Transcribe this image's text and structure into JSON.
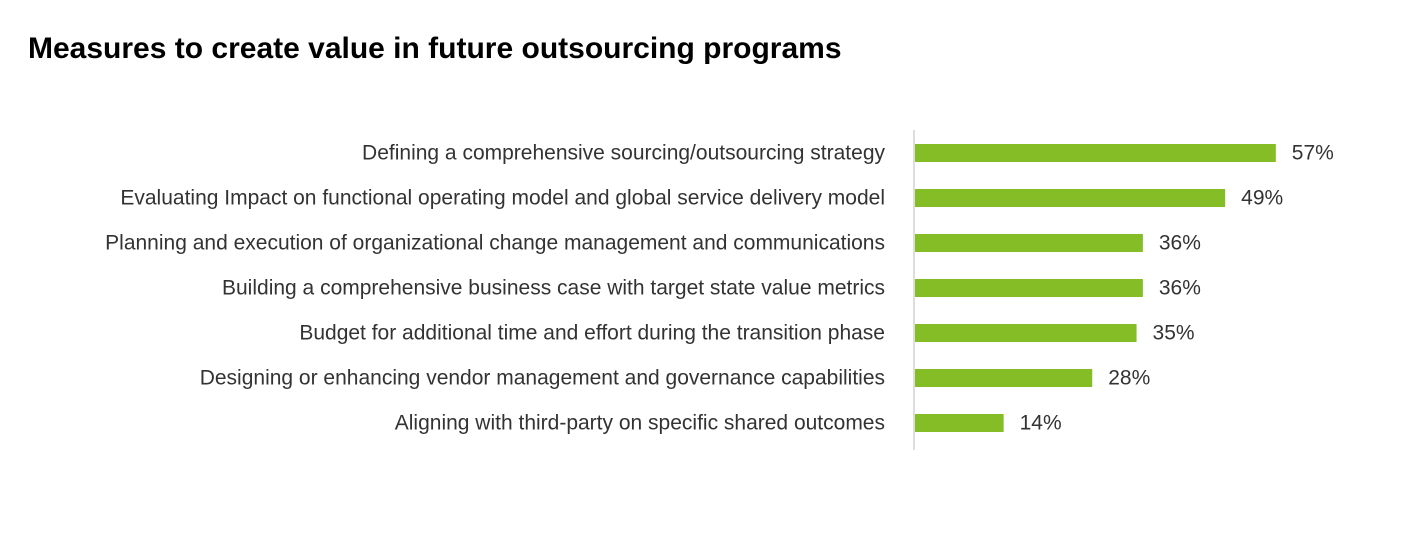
{
  "chart_data": {
    "type": "bar",
    "orientation": "horizontal",
    "title": "Measures to create value in future outsourcing programs",
    "categories": [
      "Defining a comprehensive sourcing/outsourcing strategy",
      "Evaluating Impact on functional operating model and global service delivery model",
      "Planning and execution of organizational change management and communications",
      "Building a comprehensive business case with target state value metrics",
      "Budget for additional time and effort during the transition phase",
      "Designing or enhancing vendor management and governance capabilities",
      "Aligning with third-party on specific shared outcomes"
    ],
    "values": [
      57,
      49,
      36,
      36,
      35,
      28,
      14
    ],
    "value_labels": [
      "57%",
      "49%",
      "36%",
      "36%",
      "35%",
      "28%",
      "14%"
    ],
    "color": "#84bd25"
  }
}
